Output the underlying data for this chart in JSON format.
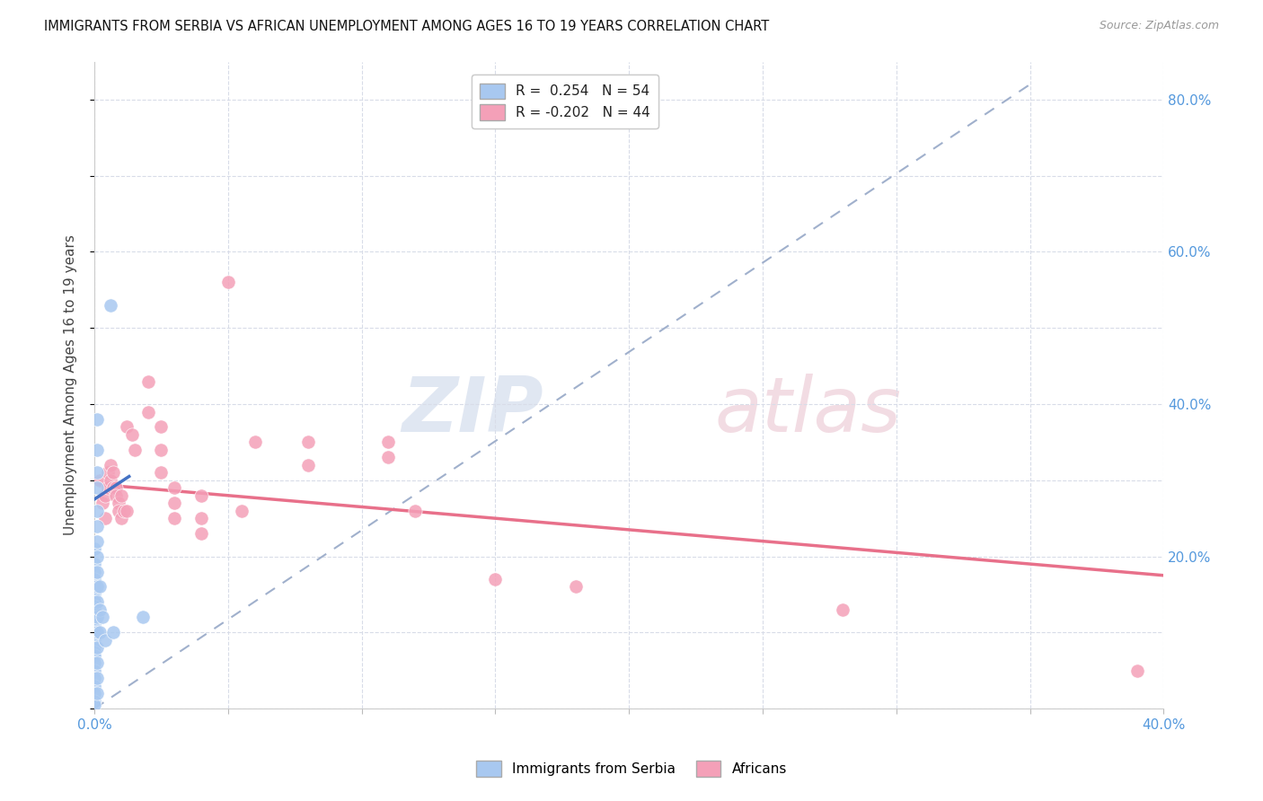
{
  "title": "IMMIGRANTS FROM SERBIA VS AFRICAN UNEMPLOYMENT AMONG AGES 16 TO 19 YEARS CORRELATION CHART",
  "source": "Source: ZipAtlas.com",
  "ylabel": "Unemployment Among Ages 16 to 19 years",
  "xlim": [
    0.0,
    0.4
  ],
  "ylim": [
    0.0,
    0.85
  ],
  "x_ticks": [
    0.0,
    0.05,
    0.1,
    0.15,
    0.2,
    0.25,
    0.3,
    0.35,
    0.4
  ],
  "y_ticks_right": [
    0.2,
    0.4,
    0.6,
    0.8
  ],
  "y_tick_labels_right": [
    "20.0%",
    "40.0%",
    "60.0%",
    "80.0%"
  ],
  "serbia_color": "#a8c8f0",
  "africans_color": "#f4a0b8",
  "serbia_trend_color": "#4472c4",
  "africans_trend_color": "#e8708a",
  "dashed_line_color": "#a0b0cc",
  "legend_r_serbia": "R =  0.254",
  "legend_n_serbia": "N = 54",
  "legend_r_africans": "R = -0.202",
  "legend_n_africans": "N = 44",
  "watermark_zip": "ZIP",
  "watermark_atlas": "atlas",
  "serbia_points": [
    [
      0.0,
      0.21
    ],
    [
      0.0,
      0.19
    ],
    [
      0.0,
      0.18
    ],
    [
      0.0,
      0.17
    ],
    [
      0.0,
      0.16
    ],
    [
      0.0,
      0.15
    ],
    [
      0.0,
      0.145
    ],
    [
      0.0,
      0.14
    ],
    [
      0.0,
      0.135
    ],
    [
      0.0,
      0.13
    ],
    [
      0.0,
      0.125
    ],
    [
      0.0,
      0.12
    ],
    [
      0.0,
      0.115
    ],
    [
      0.0,
      0.11
    ],
    [
      0.0,
      0.105
    ],
    [
      0.0,
      0.1
    ],
    [
      0.0,
      0.095
    ],
    [
      0.0,
      0.09
    ],
    [
      0.0,
      0.085
    ],
    [
      0.0,
      0.08
    ],
    [
      0.0,
      0.075
    ],
    [
      0.0,
      0.07
    ],
    [
      0.0,
      0.06
    ],
    [
      0.0,
      0.05
    ],
    [
      0.0,
      0.04
    ],
    [
      0.0,
      0.03
    ],
    [
      0.0,
      0.02
    ],
    [
      0.0,
      0.01
    ],
    [
      0.0,
      0.005
    ],
    [
      0.001,
      0.38
    ],
    [
      0.001,
      0.34
    ],
    [
      0.001,
      0.31
    ],
    [
      0.001,
      0.29
    ],
    [
      0.001,
      0.26
    ],
    [
      0.001,
      0.24
    ],
    [
      0.001,
      0.22
    ],
    [
      0.001,
      0.2
    ],
    [
      0.001,
      0.18
    ],
    [
      0.001,
      0.16
    ],
    [
      0.001,
      0.14
    ],
    [
      0.001,
      0.12
    ],
    [
      0.001,
      0.1
    ],
    [
      0.001,
      0.08
    ],
    [
      0.001,
      0.06
    ],
    [
      0.001,
      0.04
    ],
    [
      0.001,
      0.02
    ],
    [
      0.002,
      0.16
    ],
    [
      0.002,
      0.13
    ],
    [
      0.002,
      0.1
    ],
    [
      0.003,
      0.12
    ],
    [
      0.004,
      0.09
    ],
    [
      0.006,
      0.53
    ],
    [
      0.007,
      0.1
    ],
    [
      0.018,
      0.12
    ]
  ],
  "africans_points": [
    [
      0.002,
      0.3
    ],
    [
      0.003,
      0.27
    ],
    [
      0.004,
      0.28
    ],
    [
      0.004,
      0.25
    ],
    [
      0.005,
      0.31
    ],
    [
      0.005,
      0.29
    ],
    [
      0.006,
      0.32
    ],
    [
      0.006,
      0.3
    ],
    [
      0.007,
      0.31
    ],
    [
      0.007,
      0.29
    ],
    [
      0.008,
      0.29
    ],
    [
      0.008,
      0.28
    ],
    [
      0.009,
      0.27
    ],
    [
      0.009,
      0.26
    ],
    [
      0.01,
      0.28
    ],
    [
      0.01,
      0.25
    ],
    [
      0.011,
      0.26
    ],
    [
      0.012,
      0.37
    ],
    [
      0.012,
      0.26
    ],
    [
      0.014,
      0.36
    ],
    [
      0.015,
      0.34
    ],
    [
      0.02,
      0.43
    ],
    [
      0.02,
      0.39
    ],
    [
      0.025,
      0.37
    ],
    [
      0.025,
      0.34
    ],
    [
      0.025,
      0.31
    ],
    [
      0.03,
      0.29
    ],
    [
      0.03,
      0.27
    ],
    [
      0.03,
      0.25
    ],
    [
      0.04,
      0.28
    ],
    [
      0.04,
      0.25
    ],
    [
      0.04,
      0.23
    ],
    [
      0.05,
      0.56
    ],
    [
      0.055,
      0.26
    ],
    [
      0.06,
      0.35
    ],
    [
      0.08,
      0.35
    ],
    [
      0.08,
      0.32
    ],
    [
      0.11,
      0.35
    ],
    [
      0.11,
      0.33
    ],
    [
      0.12,
      0.26
    ],
    [
      0.15,
      0.17
    ],
    [
      0.18,
      0.16
    ],
    [
      0.28,
      0.13
    ],
    [
      0.39,
      0.05
    ]
  ]
}
